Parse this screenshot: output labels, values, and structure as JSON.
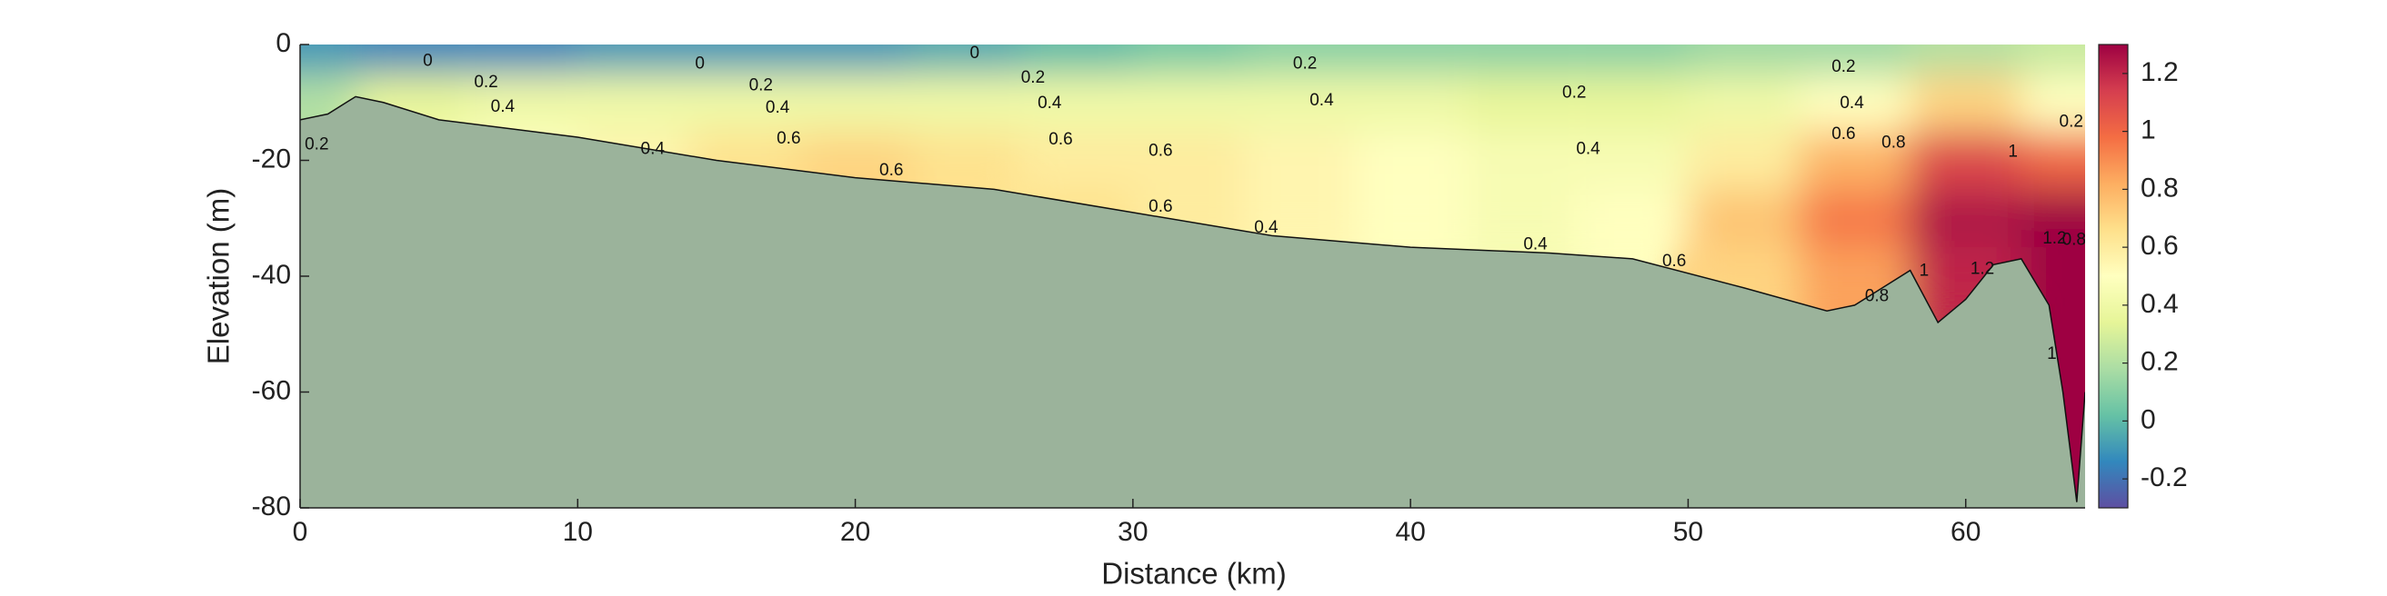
{
  "chart_data": {
    "type": "section",
    "x_label": "Distance (km)",
    "y_label": "Elevation (m)",
    "xlim": [
      0,
      64.3
    ],
    "ylim": [
      -80,
      0
    ],
    "xticks": [
      0,
      10,
      20,
      30,
      40,
      50,
      60
    ],
    "yticks": [
      0,
      -20,
      -40,
      -60,
      -80
    ],
    "clim": [
      -0.3,
      1.3
    ],
    "cticks": [
      -0.2,
      0,
      0.2,
      0.4,
      0.6,
      0.8,
      1,
      1.2
    ],
    "colormap": [
      "#5e4fa2",
      "#3288bd",
      "#66c2a5",
      "#abdda4",
      "#e6f598",
      "#ffffbf",
      "#fee08b",
      "#fdae61",
      "#f46d43",
      "#d53e4f",
      "#9e0142"
    ],
    "bottom_color": "#9bb39b",
    "field": {
      "x": [
        0,
        4,
        8,
        12,
        16,
        20,
        24,
        28,
        32,
        36,
        40,
        44,
        48,
        52,
        56,
        60,
        64
      ],
      "depth": [
        0,
        -10,
        -20,
        -30,
        -40,
        -50,
        -60,
        -70,
        -80
      ],
      "values": [
        [
          -0.1,
          -0.15,
          -0.15,
          -0.1,
          -0.1,
          -0.1,
          -0.05,
          0,
          0.05,
          0.1,
          0.1,
          0.1,
          0.1,
          0.15,
          0.15,
          0.2,
          0.25
        ],
        [
          0.2,
          0.35,
          0.4,
          0.4,
          0.4,
          0.4,
          0.4,
          0.4,
          0.4,
          0.4,
          0.4,
          0.35,
          0.35,
          0.4,
          0.5,
          0.7,
          0.5
        ],
        [
          null,
          0.45,
          0.5,
          0.55,
          0.65,
          0.7,
          0.65,
          0.6,
          0.6,
          0.55,
          0.5,
          0.45,
          0.45,
          0.6,
          0.8,
          1.1,
          1.0
        ],
        [
          null,
          null,
          null,
          null,
          null,
          null,
          null,
          0.65,
          0.6,
          0.55,
          0.5,
          0.45,
          0.5,
          0.75,
          0.95,
          1.25,
          1.3
        ],
        [
          null,
          null,
          null,
          null,
          null,
          null,
          null,
          null,
          null,
          null,
          null,
          null,
          null,
          0.7,
          0.85,
          1.2,
          1.3
        ],
        [
          null,
          null,
          null,
          null,
          null,
          null,
          null,
          null,
          null,
          null,
          null,
          null,
          null,
          null,
          null,
          null,
          1.3
        ],
        [
          null,
          null,
          null,
          null,
          null,
          null,
          null,
          null,
          null,
          null,
          null,
          null,
          null,
          null,
          null,
          null,
          1.3
        ],
        [
          null,
          null,
          null,
          null,
          null,
          null,
          null,
          null,
          null,
          null,
          null,
          null,
          null,
          null,
          null,
          null,
          1.3
        ],
        [
          null,
          null,
          null,
          null,
          null,
          null,
          null,
          null,
          null,
          null,
          null,
          null,
          null,
          null,
          null,
          null,
          1.3
        ]
      ]
    },
    "bottom": {
      "x": [
        0,
        1,
        2,
        3,
        5,
        10,
        15,
        20,
        25,
        30,
        35,
        40,
        45,
        48,
        52,
        55,
        56,
        57,
        58,
        59,
        60,
        61,
        62,
        63,
        63.5,
        64,
        64.3
      ],
      "elevation": [
        -13,
        -12,
        -9,
        -10,
        -13,
        -16,
        -20,
        -23,
        -25,
        -29,
        -33,
        -35,
        -36,
        -37,
        -42,
        -46,
        -45,
        -42,
        -39,
        -48,
        -44,
        -38,
        -37,
        -45,
        -60,
        -79,
        -60
      ]
    },
    "contour_labels": [
      {
        "x": 4.6,
        "y": -2.9,
        "value": 0
      },
      {
        "x": 14.4,
        "y": -3.4,
        "value": 0
      },
      {
        "x": 24.3,
        "y": -1.6,
        "value": 0
      },
      {
        "x": 6.7,
        "y": -6.6,
        "value": 0.2
      },
      {
        "x": 16.6,
        "y": -7.1,
        "value": 0.2
      },
      {
        "x": 26.4,
        "y": -5.8,
        "value": 0.2
      },
      {
        "x": 36.2,
        "y": -3.4,
        "value": 0.2
      },
      {
        "x": 45.9,
        "y": -8.4,
        "value": 0.2
      },
      {
        "x": 55.6,
        "y": -3.9,
        "value": 0.2
      },
      {
        "x": 0.6,
        "y": -17.3,
        "value": 0.2
      },
      {
        "x": 63.8,
        "y": -13.4,
        "value": 0.2
      },
      {
        "x": 7.3,
        "y": -10.8,
        "value": 0.4
      },
      {
        "x": 17.2,
        "y": -11,
        "value": 0.4
      },
      {
        "x": 27,
        "y": -10.2,
        "value": 0.4
      },
      {
        "x": 36.8,
        "y": -9.7,
        "value": 0.4
      },
      {
        "x": 12.7,
        "y": -18.1,
        "value": 0.4
      },
      {
        "x": 46.4,
        "y": -18.1,
        "value": 0.4
      },
      {
        "x": 55.9,
        "y": -10.2,
        "value": 0.4
      },
      {
        "x": 34.8,
        "y": -31.7,
        "value": 0.4
      },
      {
        "x": 44.5,
        "y": -34.6,
        "value": 0.4
      },
      {
        "x": 17.6,
        "y": -16.3,
        "value": 0.6
      },
      {
        "x": 21.3,
        "y": -21.8,
        "value": 0.6
      },
      {
        "x": 27.4,
        "y": -16.5,
        "value": 0.6
      },
      {
        "x": 31,
        "y": -18.4,
        "value": 0.6
      },
      {
        "x": 31,
        "y": -28.1,
        "value": 0.6
      },
      {
        "x": 49.5,
        "y": -37.5,
        "value": 0.6
      },
      {
        "x": 55.6,
        "y": -15.5,
        "value": 0.6
      },
      {
        "x": 57.4,
        "y": -17,
        "value": 0.8
      },
      {
        "x": 56.8,
        "y": -43.5,
        "value": 0.8
      },
      {
        "x": 63.9,
        "y": -33.8,
        "value": 0.8
      },
      {
        "x": 61.7,
        "y": -18.6,
        "value": 1
      },
      {
        "x": 58.5,
        "y": -39.1,
        "value": 1
      },
      {
        "x": 63.1,
        "y": -53.5,
        "value": 1
      },
      {
        "x": 60.6,
        "y": -38.8,
        "value": 1.2
      },
      {
        "x": 63.2,
        "y": -33.6,
        "value": 1.2
      }
    ]
  }
}
